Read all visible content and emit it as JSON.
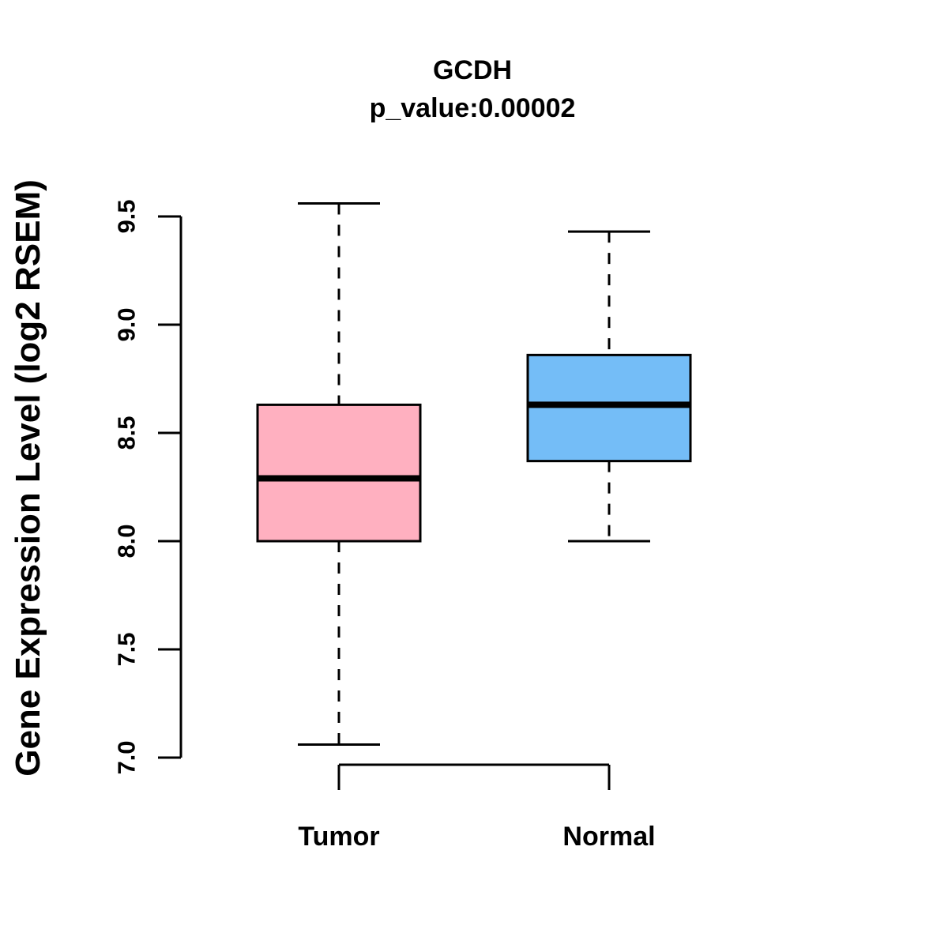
{
  "chart_data": {
    "type": "box",
    "title": "GCDH",
    "subtitle": "p_value:0.00002",
    "ylabel": "Gene Expression Level (log2 RSEM)",
    "xlabel": "",
    "ylim": [
      7.0,
      9.5
    ],
    "yticks": [
      7.0,
      7.5,
      8.0,
      8.5,
      9.0,
      9.5
    ],
    "ytick_labels": [
      "7.0",
      "7.5",
      "8.0",
      "8.5",
      "9.0",
      "9.5"
    ],
    "grid": "off",
    "legend": "none",
    "axis_color": "#000000",
    "groups": [
      {
        "label": "Tumor",
        "color": "#FFB0C0",
        "border_color": "#000000",
        "whisker_low": 7.06,
        "q1": 8.0,
        "median": 8.29,
        "q3": 8.63,
        "whisker_high": 9.56
      },
      {
        "label": "Normal",
        "color": "#74BDF7",
        "border_color": "#000000",
        "whisker_low": 8.0,
        "q1": 8.37,
        "median": 8.63,
        "q3": 8.86,
        "whisker_high": 9.43
      }
    ]
  }
}
